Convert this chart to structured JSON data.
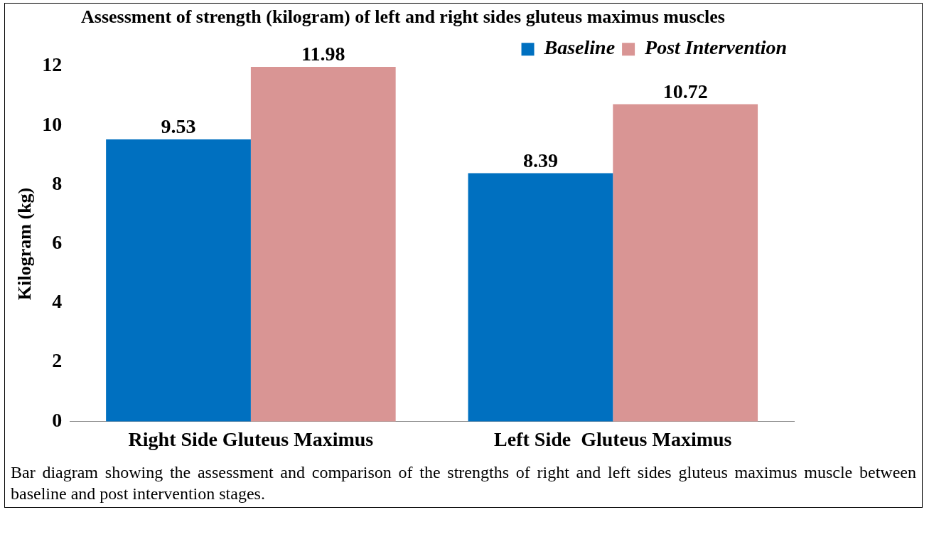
{
  "chart_data": {
    "type": "bar",
    "title": "Assessment of strength (kilogram) of left and right sides gluteus maximus muscles",
    "ylabel": "Kilogram (kg)",
    "categories": [
      "Right Side Gluteus Maximus",
      "Left Side  Gluteus Maximus"
    ],
    "series": [
      {
        "name": "Baseline",
        "color": "#0070c0",
        "values": [
          9.53,
          8.39
        ]
      },
      {
        "name": "Post Intervention",
        "color": "#d99594",
        "values": [
          11.98,
          10.72
        ]
      }
    ],
    "ylim": [
      0,
      12
    ],
    "yticks": [
      0,
      2,
      4,
      6,
      8,
      10,
      12
    ],
    "data_labels": true,
    "legend": "top right",
    "annotations": [
      "Bar diagram showing the assessment and comparison of the strengths of right and left sides gluteus maximus muscle between baseline and post intervention stages."
    ]
  }
}
